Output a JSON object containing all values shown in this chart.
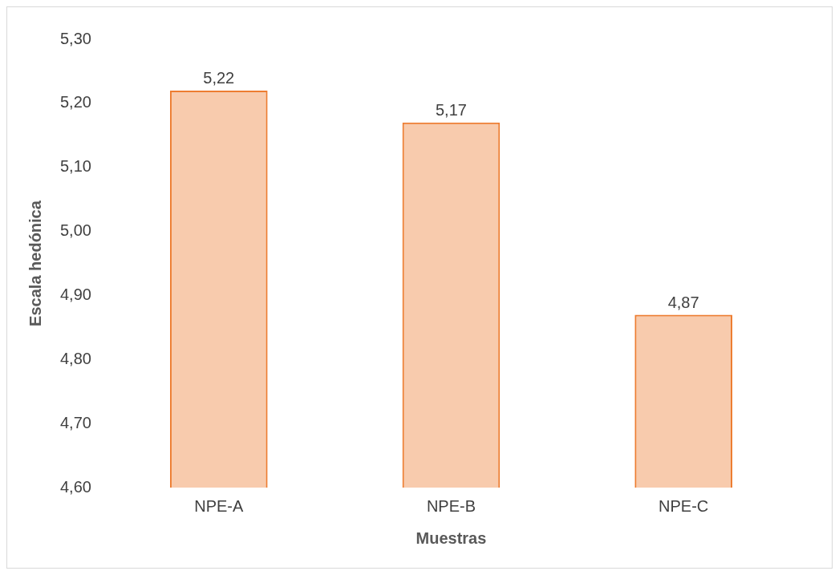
{
  "chart_data": {
    "type": "bar",
    "xlabel": "Muestras",
    "ylabel": "Escala hedónica",
    "categories": [
      "NPE-A",
      "NPE-B",
      "NPE-C"
    ],
    "values": [
      5.22,
      5.17,
      4.87
    ],
    "value_labels": [
      "5,22",
      "5,17",
      "4,87"
    ],
    "color": "#ed7d31",
    "ylim": [
      4.6,
      5.3
    ],
    "yticks": [
      {
        "value": 4.6,
        "label": "4,60"
      },
      {
        "value": 4.7,
        "label": "4,70"
      },
      {
        "value": 4.8,
        "label": "4,80"
      },
      {
        "value": 4.9,
        "label": "4,90"
      },
      {
        "value": 5.0,
        "label": "5,00"
      },
      {
        "value": 5.1,
        "label": "5,10"
      },
      {
        "value": 5.2,
        "label": "5,20"
      },
      {
        "value": 5.3,
        "label": "5,30"
      }
    ]
  }
}
